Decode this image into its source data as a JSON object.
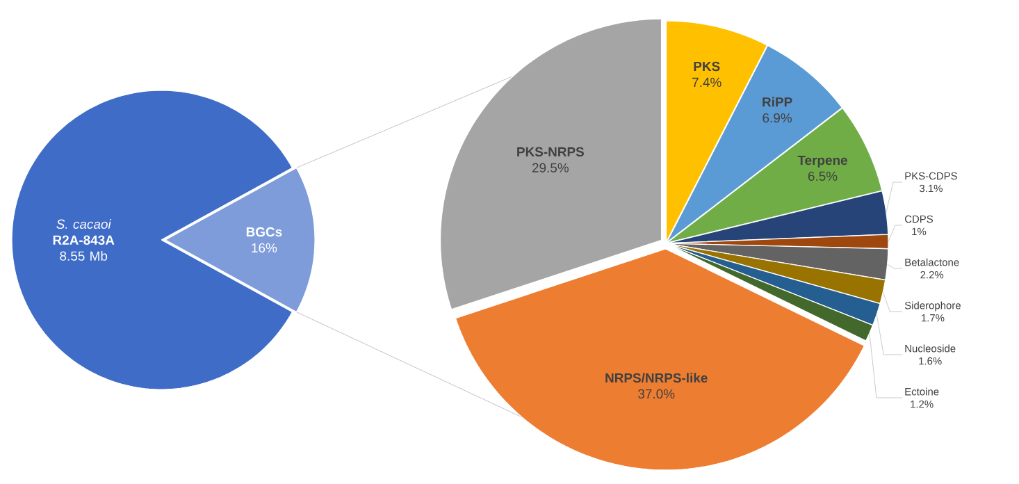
{
  "chart_data": [
    {
      "type": "pie",
      "categories": [
        "*S. cacaoi* **R2A-843A** 8.55 Mb",
        "BGCs"
      ],
      "values": [
        84,
        16
      ],
      "value_labels": [
        null,
        "16%"
      ],
      "colors": [
        "#3f6cc7",
        "#7d9cd9"
      ]
    },
    {
      "type": "pie",
      "categories": [
        "PKS",
        "RiPP",
        "Terpene",
        "PKS-CDPS",
        "CDPS",
        "Betalactone",
        "Siderophore",
        "Nucleoside",
        "Ectoine",
        "NRPS/NRPS-like",
        "PKS-NRPS"
      ],
      "values": [
        7.4,
        6.9,
        6.5,
        3.1,
        1,
        2.2,
        1.7,
        1.6,
        1.2,
        37.0,
        29.5
      ],
      "value_labels": [
        "7.4%",
        "6.9%",
        "6.5%",
        "3.1%",
        "1%",
        "2.2%",
        "1.7%",
        "1.6%",
        "1.2%",
        "37.0%",
        "29.5%"
      ],
      "colors": [
        "#ffc000",
        "#5b9bd5",
        "#70ad47",
        "#264478",
        "#9e480e",
        "#636363",
        "#997300",
        "#255e91",
        "#43682b",
        "#ed7d31",
        "#a5a5a5"
      ]
    }
  ]
}
